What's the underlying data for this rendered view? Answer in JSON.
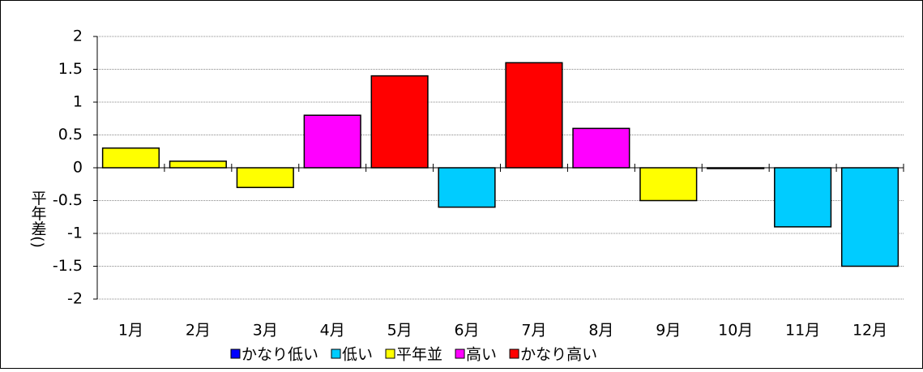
{
  "chart_data": {
    "type": "bar",
    "y_label": "平年差()",
    "categories": [
      "1月",
      "2月",
      "3月",
      "4月",
      "5月",
      "6月",
      "7月",
      "8月",
      "9月",
      "10月",
      "11月",
      "12月"
    ],
    "values": [
      0.3,
      0.1,
      -0.3,
      0.8,
      1.4,
      -0.6,
      1.6,
      0.6,
      -0.5,
      0.0,
      -0.9,
      -1.5
    ],
    "colors": [
      "#ffff00",
      "#ffff00",
      "#ffff00",
      "#ff00ff",
      "#ff0000",
      "#00ccff",
      "#ff0000",
      "#ff00ff",
      "#ffff00",
      "#ffff00",
      "#00ccff",
      "#00ccff"
    ],
    "legend": [
      {
        "name": "かなり低い",
        "color": "#0000ff"
      },
      {
        "name": "低い",
        "color": "#00ccff"
      },
      {
        "name": "平年並",
        "color": "#ffff00"
      },
      {
        "name": "高い",
        "color": "#ff00ff"
      },
      {
        "name": "かなり高い",
        "color": "#ff0000"
      }
    ],
    "ylim": [
      -2,
      2
    ],
    "yticks": [
      -2,
      -1.5,
      -1,
      -0.5,
      0,
      0.5,
      1,
      1.5,
      2
    ],
    "grid": true
  }
}
